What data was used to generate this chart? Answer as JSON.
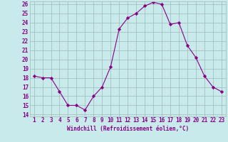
{
  "x": [
    1,
    2,
    3,
    4,
    5,
    6,
    7,
    8,
    9,
    10,
    11,
    12,
    13,
    14,
    15,
    16,
    17,
    18,
    19,
    20,
    21,
    22,
    23
  ],
  "y": [
    18.2,
    18.0,
    18.0,
    16.5,
    15.0,
    15.0,
    14.5,
    16.0,
    17.0,
    19.2,
    23.3,
    24.5,
    25.0,
    25.8,
    26.2,
    26.0,
    23.8,
    24.0,
    21.5,
    20.2,
    18.2,
    17.0,
    16.5
  ],
  "line_color": "#880088",
  "marker": "D",
  "marker_size": 2.2,
  "bg_color": "#c8eaea",
  "grid_color": "#a0b8b8",
  "xlabel": "Windchill (Refroidissement éolien,°C)",
  "xlabel_color": "#880088",
  "tick_color": "#880088",
  "ylim": [
    14,
    26
  ],
  "xlim": [
    1,
    23
  ],
  "yticks": [
    14,
    15,
    16,
    17,
    18,
    19,
    20,
    21,
    22,
    23,
    24,
    25,
    26
  ],
  "xticks": [
    1,
    2,
    3,
    4,
    5,
    6,
    7,
    8,
    9,
    10,
    11,
    12,
    13,
    14,
    15,
    16,
    17,
    18,
    19,
    20,
    21,
    22,
    23
  ],
  "label_fontsize": 5.5,
  "tick_fontsize": 5.5
}
